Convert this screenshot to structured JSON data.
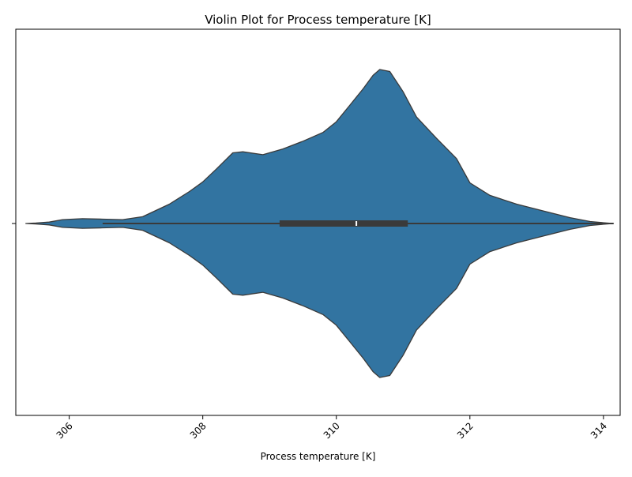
{
  "chart_data": {
    "type": "violin",
    "title": "Violin Plot for Process temperature [K]",
    "xlabel": "Process temperature [K]",
    "ylabel": "",
    "xlim": [
      305.2,
      314.25
    ],
    "x_ticks": [
      306,
      308,
      310,
      312,
      314
    ],
    "x_tick_labels": [
      "306",
      "308",
      "310",
      "312",
      "314"
    ],
    "tick_label_rotation_deg": 45,
    "grid": false,
    "legend": "none",
    "fill_color": "#3274A1",
    "edge_color": "#3A3A3A",
    "density_profile": {
      "x": [
        305.35,
        305.5,
        305.7,
        305.9,
        306.2,
        306.5,
        306.8,
        307.1,
        307.5,
        307.8,
        308.0,
        308.2,
        308.45,
        308.6,
        308.9,
        309.2,
        309.5,
        309.8,
        310.0,
        310.2,
        310.4,
        310.55,
        310.65,
        310.8,
        311.0,
        311.2,
        311.5,
        311.8,
        312.0,
        312.3,
        312.7,
        313.1,
        313.5,
        313.8,
        314.05,
        314.15
      ],
      "relative_width": [
        0.0,
        0.005,
        0.015,
        0.04,
        0.05,
        0.045,
        0.04,
        0.07,
        0.2,
        0.33,
        0.43,
        0.56,
        0.73,
        0.74,
        0.71,
        0.77,
        0.85,
        0.94,
        1.05,
        1.22,
        1.39,
        1.53,
        1.59,
        1.57,
        1.36,
        1.1,
        0.88,
        0.67,
        0.42,
        0.29,
        0.2,
        0.13,
        0.06,
        0.02,
        0.005,
        0.0
      ]
    },
    "box": {
      "q1": 309.15,
      "median": 310.3,
      "q3": 311.07,
      "whisker_low": 306.5,
      "whisker_high": 314.15
    }
  }
}
